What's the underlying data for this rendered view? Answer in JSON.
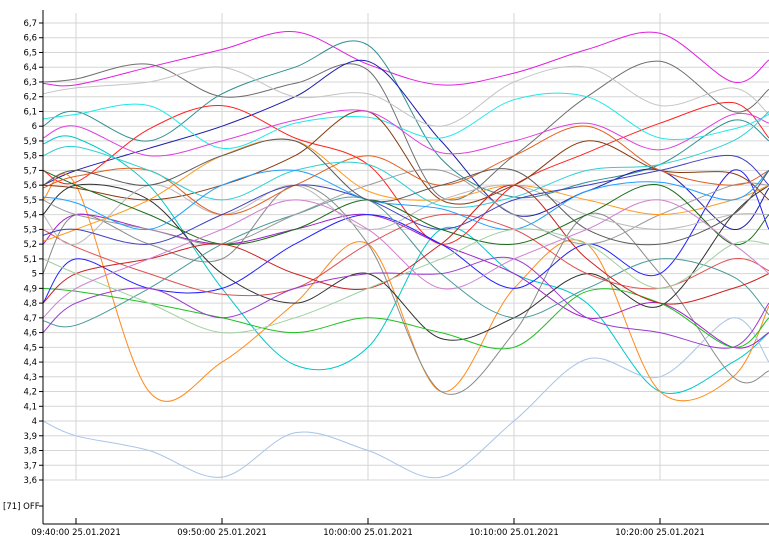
{
  "chart_data": {
    "type": "line",
    "title": "",
    "xlabel": "",
    "ylabel": "",
    "x_ticks": [
      "09:40:00 25.01.2021",
      "09:50:00 25.01.2021",
      "10:00:00 25.01.2021",
      "10:10:00 25.01.2021",
      "10:20:00 25.01.2021"
    ],
    "x_minutes": [
      -2.7,
      0,
      5,
      10,
      15,
      20,
      25,
      30,
      35,
      40,
      45,
      47.5
    ],
    "y_ticks": [
      "6,7",
      "6,6",
      "6,5",
      "6,4",
      "6,3",
      "6,2",
      "6,1",
      "6",
      "5,9",
      "5,8",
      "5,7",
      "5,6",
      "5,5",
      "5,4",
      "5,3",
      "5,2",
      "5,1",
      "5",
      "4,9",
      "4,8",
      "4,7",
      "4,6",
      "4,5",
      "4,4",
      "4,3",
      "4,2",
      "4,1",
      "4",
      "3,9",
      "3,8",
      "3,7",
      "3,6"
    ],
    "ylim": [
      3.6,
      6.7
    ],
    "digital_label": "[71] OFF",
    "grid": true,
    "series": [
      {
        "color": "#e020e0",
        "values": [
          6.29,
          6.28,
          6.4,
          6.52,
          6.64,
          6.42,
          6.28,
          6.36,
          6.52,
          6.63,
          6.3,
          6.45
        ]
      },
      {
        "color": "#6e6e6e",
        "values": [
          6.3,
          6.32,
          6.42,
          6.2,
          6.29,
          6.38,
          5.52,
          5.8,
          6.2,
          6.44,
          6.1,
          6.25
        ]
      },
      {
        "color": "#2f8f8f",
        "values": [
          6.0,
          6.1,
          5.9,
          6.22,
          6.4,
          6.55,
          5.78,
          5.52,
          5.62,
          5.74,
          6.04,
          5.9
        ]
      },
      {
        "color": "#1c1caa",
        "values": [
          5.6,
          5.7,
          5.85,
          6.0,
          6.2,
          6.44,
          5.9,
          5.4,
          5.56,
          5.7,
          5.3,
          5.58
        ]
      },
      {
        "color": "#ff2020",
        "values": [
          5.7,
          5.62,
          5.98,
          6.14,
          5.92,
          5.74,
          5.2,
          5.6,
          5.82,
          6.02,
          6.16,
          5.92
        ]
      },
      {
        "color": "#c4c4c4",
        "values": [
          6.22,
          6.26,
          6.3,
          6.4,
          6.2,
          6.22,
          6.0,
          6.3,
          6.4,
          6.14,
          6.26,
          6.08
        ]
      },
      {
        "color": "#20e8e8",
        "values": [
          6.05,
          6.08,
          6.14,
          5.85,
          6.02,
          6.06,
          5.92,
          6.18,
          6.2,
          5.92,
          5.98,
          6.08
        ]
      },
      {
        "color": "#00c8c8",
        "values": [
          5.88,
          5.92,
          5.6,
          4.9,
          4.38,
          4.5,
          5.3,
          5.0,
          4.8,
          4.2,
          4.4,
          4.6
        ]
      },
      {
        "color": "#ff8a1a",
        "values": [
          5.5,
          5.6,
          4.2,
          4.4,
          4.8,
          5.2,
          4.2,
          4.9,
          5.2,
          4.2,
          4.3,
          4.78
        ]
      },
      {
        "color": "#8a8a8a",
        "values": [
          5.0,
          5.4,
          5.2,
          5.1,
          5.6,
          5.2,
          4.2,
          4.6,
          5.4,
          5.0,
          4.3,
          4.34
        ]
      },
      {
        "color": "#a8c4e8",
        "values": [
          4.0,
          3.9,
          3.8,
          3.62,
          3.92,
          3.8,
          3.62,
          4.0,
          4.42,
          4.3,
          4.7,
          4.4
        ]
      },
      {
        "color": "#303030",
        "values": [
          5.4,
          5.6,
          5.5,
          5.0,
          4.8,
          5.0,
          4.56,
          4.7,
          5.0,
          4.78,
          5.4,
          5.6
        ]
      },
      {
        "color": "#a020c8",
        "values": [
          5.2,
          5.4,
          5.3,
          5.2,
          5.3,
          5.4,
          5.2,
          5.0,
          4.7,
          4.8,
          4.5,
          4.6
        ]
      },
      {
        "color": "#20c020",
        "values": [
          4.9,
          4.88,
          4.8,
          4.7,
          4.6,
          4.7,
          4.6,
          4.5,
          4.88,
          4.8,
          4.5,
          4.7
        ]
      },
      {
        "color": "#8a3a10",
        "values": [
          5.6,
          5.58,
          5.5,
          5.6,
          5.8,
          6.1,
          5.5,
          5.6,
          5.9,
          5.7,
          5.68,
          5.5
        ]
      },
      {
        "color": "#2020ff",
        "values": [
          4.8,
          5.1,
          4.9,
          4.9,
          5.2,
          5.4,
          5.2,
          4.9,
          5.2,
          5.0,
          5.7,
          5.3
        ]
      },
      {
        "color": "#4a9a9a",
        "values": [
          4.68,
          4.65,
          4.9,
          5.2,
          5.4,
          5.5,
          5.0,
          4.7,
          4.9,
          5.1,
          4.98,
          4.72
        ]
      },
      {
        "color": "#e05050",
        "values": [
          5.3,
          5.18,
          5.0,
          4.86,
          4.9,
          5.2,
          5.4,
          5.3,
          5.0,
          4.9,
          5.1,
          5.02
        ]
      },
      {
        "color": "#9a9a9a",
        "values": [
          5.5,
          5.4,
          5.3,
          5.2,
          5.4,
          5.6,
          5.7,
          5.4,
          5.2,
          5.4,
          5.6,
          5.6
        ]
      },
      {
        "color": "#b8b8b8",
        "values": [
          5.4,
          5.2,
          5.6,
          5.4,
          5.6,
          5.3,
          5.5,
          5.6,
          5.4,
          5.3,
          5.4,
          5.4
        ]
      },
      {
        "color": "#e040e0",
        "values": [
          5.92,
          6.0,
          5.8,
          5.9,
          6.04,
          6.1,
          5.82,
          5.9,
          6.02,
          5.84,
          6.08,
          6.02
        ]
      },
      {
        "color": "#ff9a20",
        "values": [
          5.22,
          5.3,
          5.5,
          5.8,
          5.9,
          5.56,
          5.5,
          5.6,
          5.5,
          5.4,
          5.5,
          5.6
        ]
      },
      {
        "color": "#1b6b1b",
        "values": [
          5.7,
          5.6,
          5.4,
          5.2,
          5.3,
          5.5,
          5.3,
          5.2,
          5.4,
          5.6,
          5.2,
          5.4
        ]
      },
      {
        "color": "#e06020",
        "values": [
          5.58,
          5.66,
          5.7,
          5.4,
          5.6,
          5.8,
          5.6,
          5.8,
          6.0,
          5.7,
          5.6,
          5.7
        ]
      },
      {
        "color": "#30d0d0",
        "values": [
          5.8,
          5.86,
          5.7,
          5.5,
          5.7,
          5.74,
          5.46,
          5.52,
          5.7,
          5.74,
          5.9,
          6.1
        ]
      },
      {
        "color": "#4040c0",
        "values": [
          5.26,
          5.3,
          5.2,
          5.4,
          5.6,
          5.5,
          5.3,
          5.5,
          5.6,
          5.7,
          5.8,
          5.6
        ]
      },
      {
        "color": "#9a3ad0",
        "values": [
          4.6,
          4.8,
          4.9,
          4.7,
          4.9,
          5.0,
          5.0,
          5.1,
          4.7,
          4.6,
          4.5,
          4.8
        ]
      },
      {
        "color": "#cc2020",
        "values": [
          4.8,
          5.0,
          5.1,
          5.2,
          5.0,
          4.9,
          5.2,
          5.6,
          5.1,
          4.8,
          4.9,
          5.0
        ]
      },
      {
        "color": "#20a0ff",
        "values": [
          5.52,
          5.48,
          5.3,
          5.6,
          5.7,
          5.5,
          5.44,
          5.3,
          5.56,
          5.62,
          5.5,
          5.7
        ]
      },
      {
        "color": "#5a5a5a",
        "values": [
          5.6,
          5.7,
          5.6,
          5.8,
          5.9,
          5.5,
          5.6,
          5.7,
          5.3,
          5.2,
          5.4,
          5.7
        ]
      },
      {
        "color": "#a0d0a0",
        "values": [
          5.1,
          5.0,
          4.8,
          4.6,
          4.7,
          4.9,
          5.1,
          5.3,
          5.2,
          4.9,
          5.2,
          5.2
        ]
      },
      {
        "color": "#d080d0",
        "values": [
          4.7,
          4.9,
          5.1,
          5.3,
          5.5,
          5.3,
          4.9,
          5.1,
          5.3,
          5.5,
          5.2,
          5.0
        ]
      }
    ]
  }
}
